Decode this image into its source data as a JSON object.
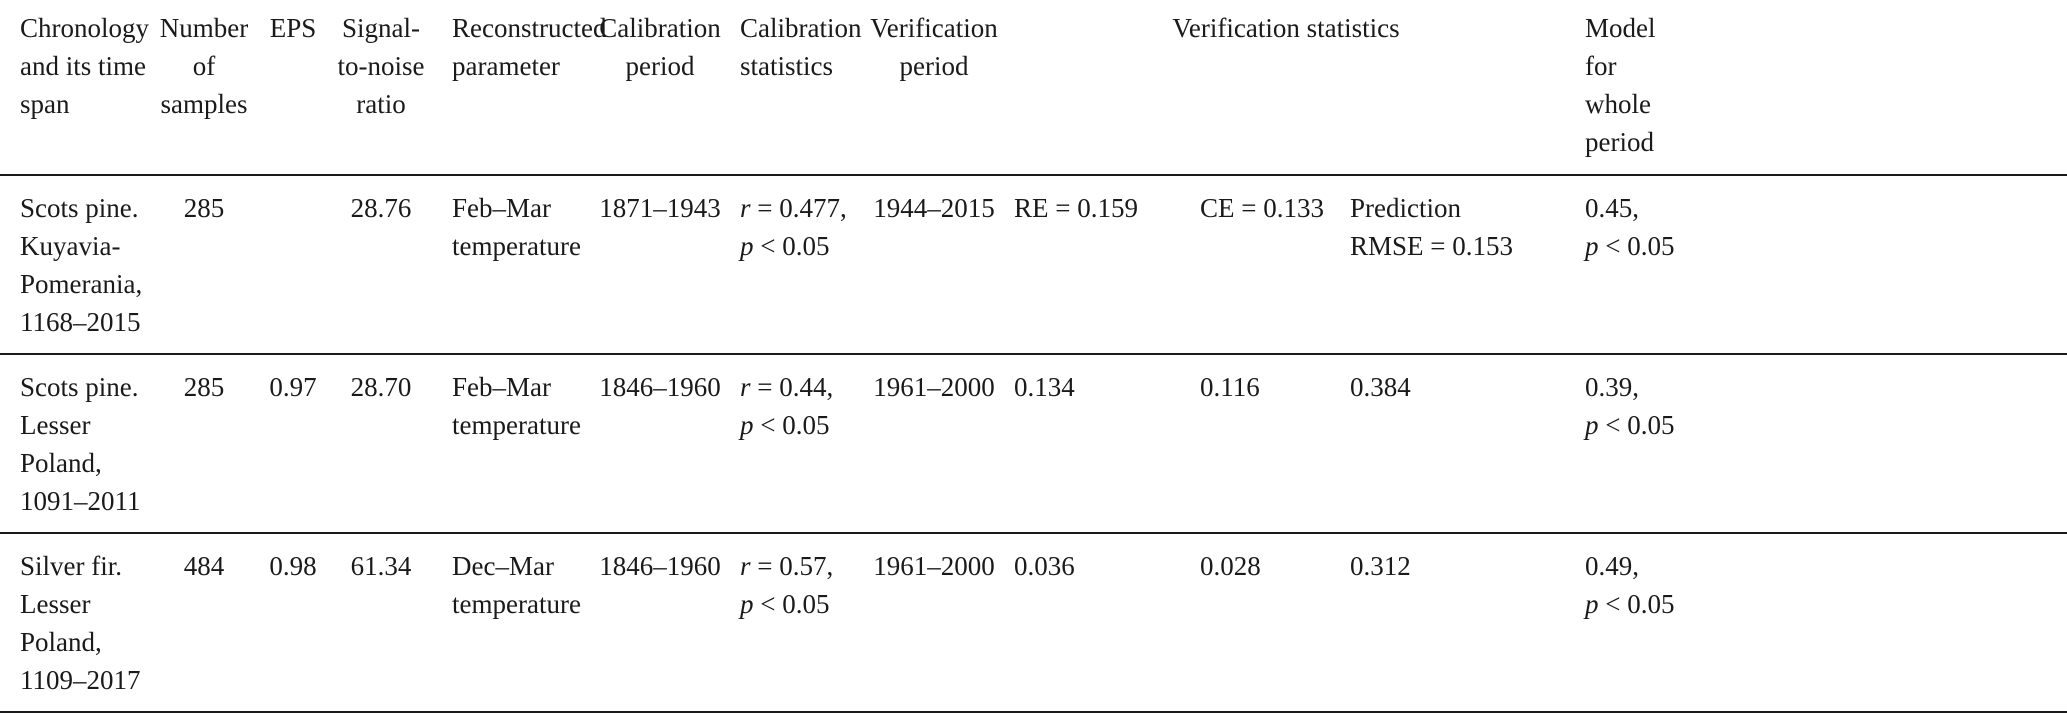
{
  "headers": {
    "chronology": "Chronology\nand its time\nspan",
    "samples": "Number\nof\nsamples",
    "eps": "EPS",
    "snr": "Signal-\nto-noise\nratio",
    "parameter": "Reconstructed\nparameter",
    "cal_period": "Calibration\nperiod",
    "cal_stats": "Calibration\nstatistics",
    "ver_period": "Verification\nperiod",
    "ver_stats": "Verification statistics",
    "model": "Model\nfor\nwhole\nperiod"
  },
  "rows": [
    {
      "chronology": "Scots pine.\nKuyavia-\nPomerania,\n1168–2015",
      "samples": "285",
      "eps": "",
      "snr": "28.76",
      "parameter": "Feb–Mar\ntemperature",
      "cal_period": "1871–1943",
      "cal_r_var": "r",
      "cal_r_val": " = 0.477,",
      "cal_p_var": "p",
      "cal_p_val": " < 0.05",
      "ver_period": "1944–2015",
      "re": "RE = 0.159",
      "ce": "CE = 0.133",
      "rmse": "Prediction\nRMSE = 0.153",
      "model_val": "0.45,",
      "model_p_var": "p",
      "model_p_val": " < 0.05"
    },
    {
      "chronology": "Scots pine.\nLesser\nPoland,\n1091–2011",
      "samples": "285",
      "eps": "0.97",
      "snr": "28.70",
      "parameter": "Feb–Mar\ntemperature",
      "cal_period": "1846–1960",
      "cal_r_var": "r",
      "cal_r_val": " = 0.44,",
      "cal_p_var": "p",
      "cal_p_val": " < 0.05",
      "ver_period": "1961–2000",
      "re": "0.134",
      "ce": "0.116",
      "rmse": "0.384",
      "model_val": "0.39,",
      "model_p_var": "p",
      "model_p_val": " < 0.05"
    },
    {
      "chronology": "Silver fir.\nLesser\nPoland,\n1109–2017",
      "samples": "484",
      "eps": "0.98",
      "snr": "61.34",
      "parameter": "Dec–Mar\ntemperature",
      "cal_period": "1846–1960",
      "cal_r_var": "r",
      "cal_r_val": " = 0.57,",
      "cal_p_var": "p",
      "cal_p_val": " < 0.05",
      "ver_period": "1961–2000",
      "re": "0.036",
      "ce": "0.028",
      "rmse": "0.312",
      "model_val": "0.49,",
      "model_p_var": "p",
      "model_p_val": " < 0.05"
    }
  ]
}
